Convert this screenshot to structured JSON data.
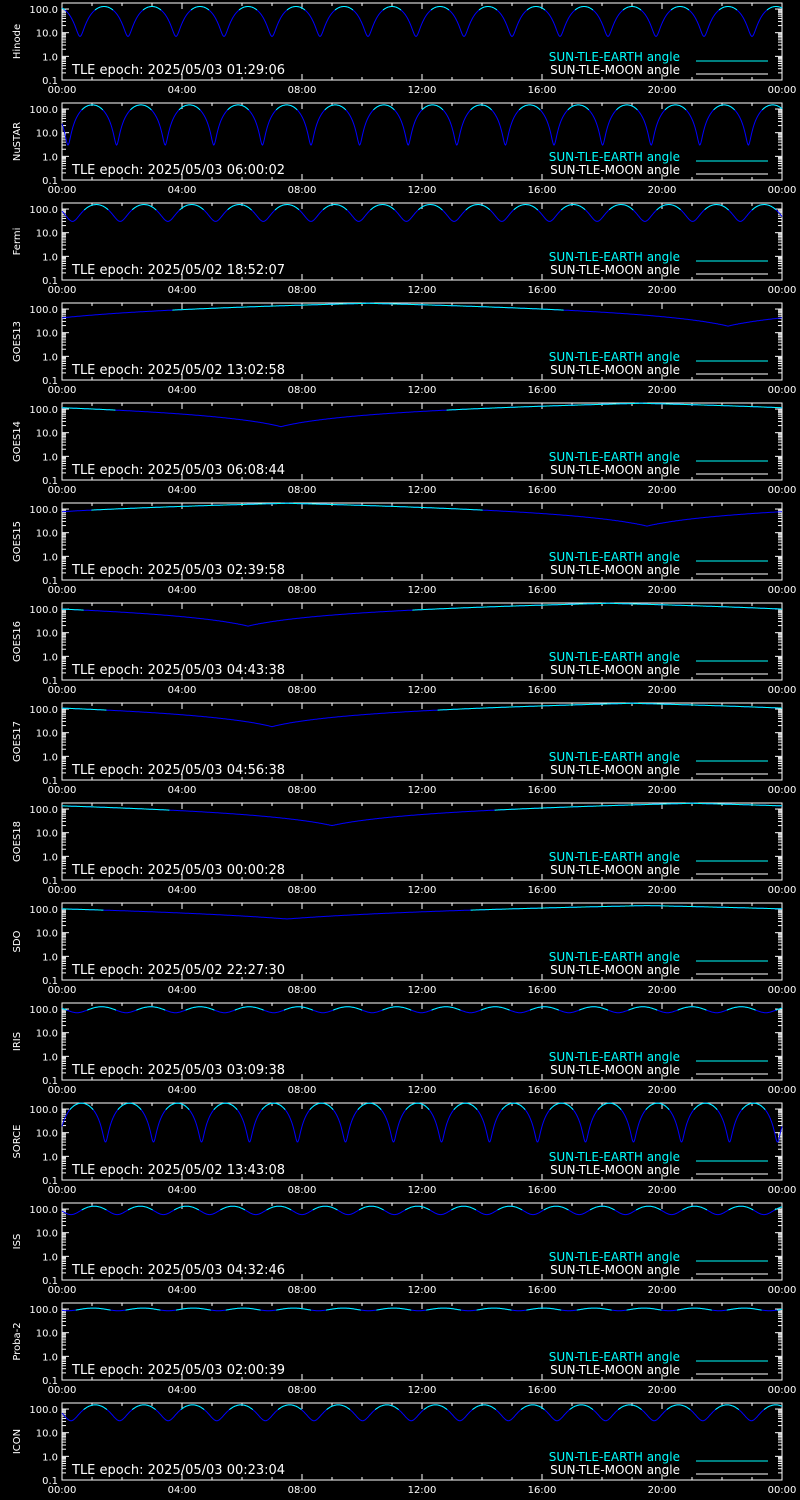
{
  "page": {
    "background": "#000000",
    "axis_color": "#ffffff",
    "earth_color": "#00ffff",
    "moon_color": "#ffffff",
    "curve_color": "#0000ff"
  },
  "common": {
    "x_ticks": [
      "00:00",
      "04:00",
      "08:00",
      "12:00",
      "16:00",
      "20:00",
      "00:00"
    ],
    "y_ticks": [
      "0.1",
      "1.0",
      "10.0",
      "100.0"
    ],
    "legend_earth": "SUN-TLE-EARTH angle",
    "legend_moon": "SUN-TLE-MOON angle",
    "epoch_prefix": "TLE epoch: "
  },
  "chart_data": [
    {
      "type": "line",
      "ylabel": "Hinode",
      "epoch": "2025/05/03 01:29:06",
      "xlim": [
        0,
        24
      ],
      "ylim": [
        0.1,
        180
      ],
      "yscale": "log",
      "legend_position": "bottom-right",
      "shape": "periodic",
      "period_h": 1.6,
      "phase_h": 0.6,
      "min_deg": 7,
      "max_deg": 128
    },
    {
      "type": "line",
      "ylabel": "NuSTAR",
      "epoch": "2025/05/03 06:00:02",
      "xlim": [
        0,
        24
      ],
      "ylim": [
        0.1,
        180
      ],
      "yscale": "log",
      "legend_position": "bottom-right",
      "shape": "periodic",
      "period_h": 1.62,
      "phase_h": 0.2,
      "min_deg": 3,
      "max_deg": 150
    },
    {
      "type": "line",
      "ylabel": "Fermi",
      "epoch": "2025/05/02 18:52:07",
      "xlim": [
        0,
        24
      ],
      "ylim": [
        0.1,
        180
      ],
      "yscale": "log",
      "legend_position": "bottom-right",
      "shape": "periodic",
      "period_h": 1.59,
      "phase_h": 0.35,
      "min_deg": 30,
      "max_deg": 155
    },
    {
      "type": "line",
      "ylabel": "GOES13",
      "epoch": "2025/05/02 13:02:58",
      "xlim": [
        0,
        24
      ],
      "ylim": [
        0.1,
        180
      ],
      "yscale": "log",
      "legend_position": "bottom-right",
      "shape": "geo",
      "tmin_h": 22.2,
      "min_deg": 19,
      "max_deg": 175
    },
    {
      "type": "line",
      "ylabel": "GOES14",
      "epoch": "2025/05/03 06:08:44",
      "xlim": [
        0,
        24
      ],
      "ylim": [
        0.1,
        180
      ],
      "yscale": "log",
      "legend_position": "bottom-right",
      "shape": "geo",
      "tmin_h": 7.3,
      "min_deg": 18,
      "max_deg": 175
    },
    {
      "type": "line",
      "ylabel": "GOES15",
      "epoch": "2025/05/03 02:39:58",
      "xlim": [
        0,
        24
      ],
      "ylim": [
        0.1,
        180
      ],
      "yscale": "log",
      "legend_position": "bottom-right",
      "shape": "geo",
      "tmin_h": 19.5,
      "min_deg": 19,
      "max_deg": 175
    },
    {
      "type": "line",
      "ylabel": "GOES16",
      "epoch": "2025/05/03 04:43:38",
      "xlim": [
        0,
        24
      ],
      "ylim": [
        0.1,
        180
      ],
      "yscale": "log",
      "legend_position": "bottom-right",
      "shape": "geo",
      "tmin_h": 6.2,
      "min_deg": 19,
      "max_deg": 175
    },
    {
      "type": "line",
      "ylabel": "GOES17",
      "epoch": "2025/05/03 04:56:38",
      "xlim": [
        0,
        24
      ],
      "ylim": [
        0.1,
        180
      ],
      "yscale": "log",
      "legend_position": "bottom-right",
      "shape": "geo",
      "tmin_h": 7.0,
      "min_deg": 18,
      "max_deg": 175
    },
    {
      "type": "line",
      "ylabel": "GOES18",
      "epoch": "2025/05/03 00:00:28",
      "xlim": [
        0,
        24
      ],
      "ylim": [
        0.1,
        180
      ],
      "yscale": "log",
      "legend_position": "bottom-right",
      "shape": "geo",
      "tmin_h": 9.0,
      "min_deg": 20,
      "max_deg": 175
    },
    {
      "type": "line",
      "ylabel": "SDO",
      "epoch": "2025/05/02 22:27:30",
      "xlim": [
        0,
        24
      ],
      "ylim": [
        0.1,
        180
      ],
      "yscale": "log",
      "legend_position": "bottom-right",
      "shape": "geo",
      "tmin_h": 7.5,
      "min_deg": 38,
      "max_deg": 140
    },
    {
      "type": "line",
      "ylabel": "IRIS",
      "epoch": "2025/05/03 03:09:38",
      "xlim": [
        0,
        24
      ],
      "ylim": [
        0.1,
        180
      ],
      "yscale": "log",
      "legend_position": "bottom-right",
      "shape": "periodic",
      "period_h": 1.64,
      "phase_h": 0.5,
      "min_deg": 70,
      "max_deg": 125
    },
    {
      "type": "line",
      "ylabel": "SORCE",
      "epoch": "2025/05/02 13:43:08",
      "xlim": [
        0,
        24
      ],
      "ylim": [
        0.1,
        180
      ],
      "yscale": "log",
      "legend_position": "bottom-right",
      "shape": "periodic",
      "period_h": 1.6,
      "phase_h": 1.45,
      "min_deg": 4,
      "max_deg": 176
    },
    {
      "type": "line",
      "ylabel": "ISS",
      "epoch": "2025/05/03 04:32:46",
      "xlim": [
        0,
        24
      ],
      "ylim": [
        0.1,
        180
      ],
      "yscale": "log",
      "legend_position": "bottom-right",
      "shape": "periodic",
      "period_h": 1.54,
      "phase_h": 0.3,
      "min_deg": 58,
      "max_deg": 132
    },
    {
      "type": "line",
      "ylabel": "Proba-2",
      "epoch": "2025/05/03 02:00:39",
      "xlim": [
        0,
        24
      ],
      "ylim": [
        0.1,
        180
      ],
      "yscale": "log",
      "legend_position": "bottom-right",
      "shape": "periodic",
      "period_h": 1.67,
      "phase_h": 0.2,
      "min_deg": 85,
      "max_deg": 110
    },
    {
      "type": "line",
      "ylabel": "ICON",
      "epoch": "2025/05/03 00:23:04",
      "xlim": [
        0,
        24
      ],
      "ylim": [
        0.1,
        180
      ],
      "yscale": "log",
      "legend_position": "bottom-right",
      "shape": "periodic",
      "period_h": 1.62,
      "phase_h": 0.3,
      "min_deg": 32,
      "max_deg": 150
    }
  ]
}
